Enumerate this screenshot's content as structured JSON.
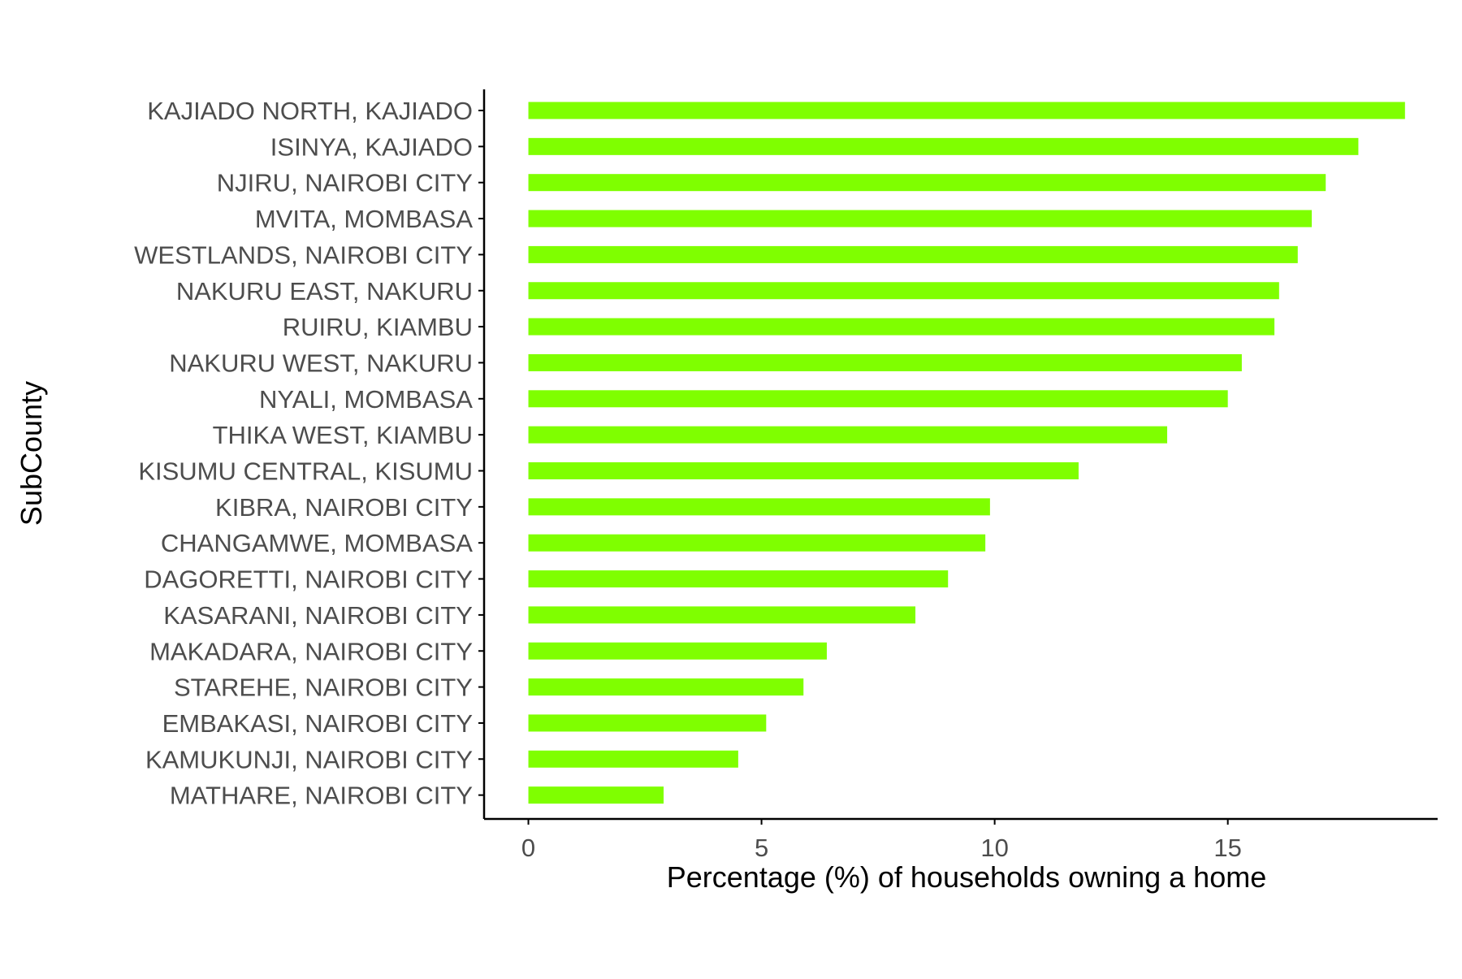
{
  "colors": {
    "bar": "#7fff00",
    "axis": "#000000",
    "tick_text": "#4d4d4d",
    "title_text": "#000000",
    "background": "#ffffff"
  },
  "chart_data": {
    "type": "bar",
    "orientation": "horizontal",
    "xlabel": "Percentage (%) of households owning a home",
    "ylabel": "SubCounty",
    "xlim": [
      -0.95,
      19.5
    ],
    "xticks": [
      0,
      5,
      10,
      15
    ],
    "xtick_labels": [
      "0",
      "5",
      "10",
      "15"
    ],
    "grid": false,
    "legend": "none",
    "categories": [
      "KAJIADO NORTH, KAJIADO",
      "ISINYA, KAJIADO",
      "NJIRU, NAIROBI CITY",
      "MVITA, MOMBASA",
      "WESTLANDS, NAIROBI CITY",
      "NAKURU EAST, NAKURU",
      "RUIRU, KIAMBU",
      "NAKURU WEST, NAKURU",
      "NYALI, MOMBASA",
      "THIKA WEST, KIAMBU",
      "KISUMU CENTRAL, KISUMU",
      "KIBRA, NAIROBI CITY",
      "CHANGAMWE, MOMBASA",
      "DAGORETTI, NAIROBI CITY",
      "KASARANI, NAIROBI CITY",
      "MAKADARA, NAIROBI CITY",
      "STAREHE, NAIROBI CITY",
      "EMBAKASI, NAIROBI CITY",
      "KAMUKUNJI, NAIROBI CITY",
      "MATHARE, NAIROBI CITY"
    ],
    "values": [
      18.8,
      17.8,
      17.1,
      16.8,
      16.5,
      16.1,
      16.0,
      15.3,
      15.0,
      13.7,
      11.8,
      9.9,
      9.8,
      9.0,
      8.3,
      6.4,
      5.9,
      5.1,
      4.5,
      2.9
    ]
  }
}
